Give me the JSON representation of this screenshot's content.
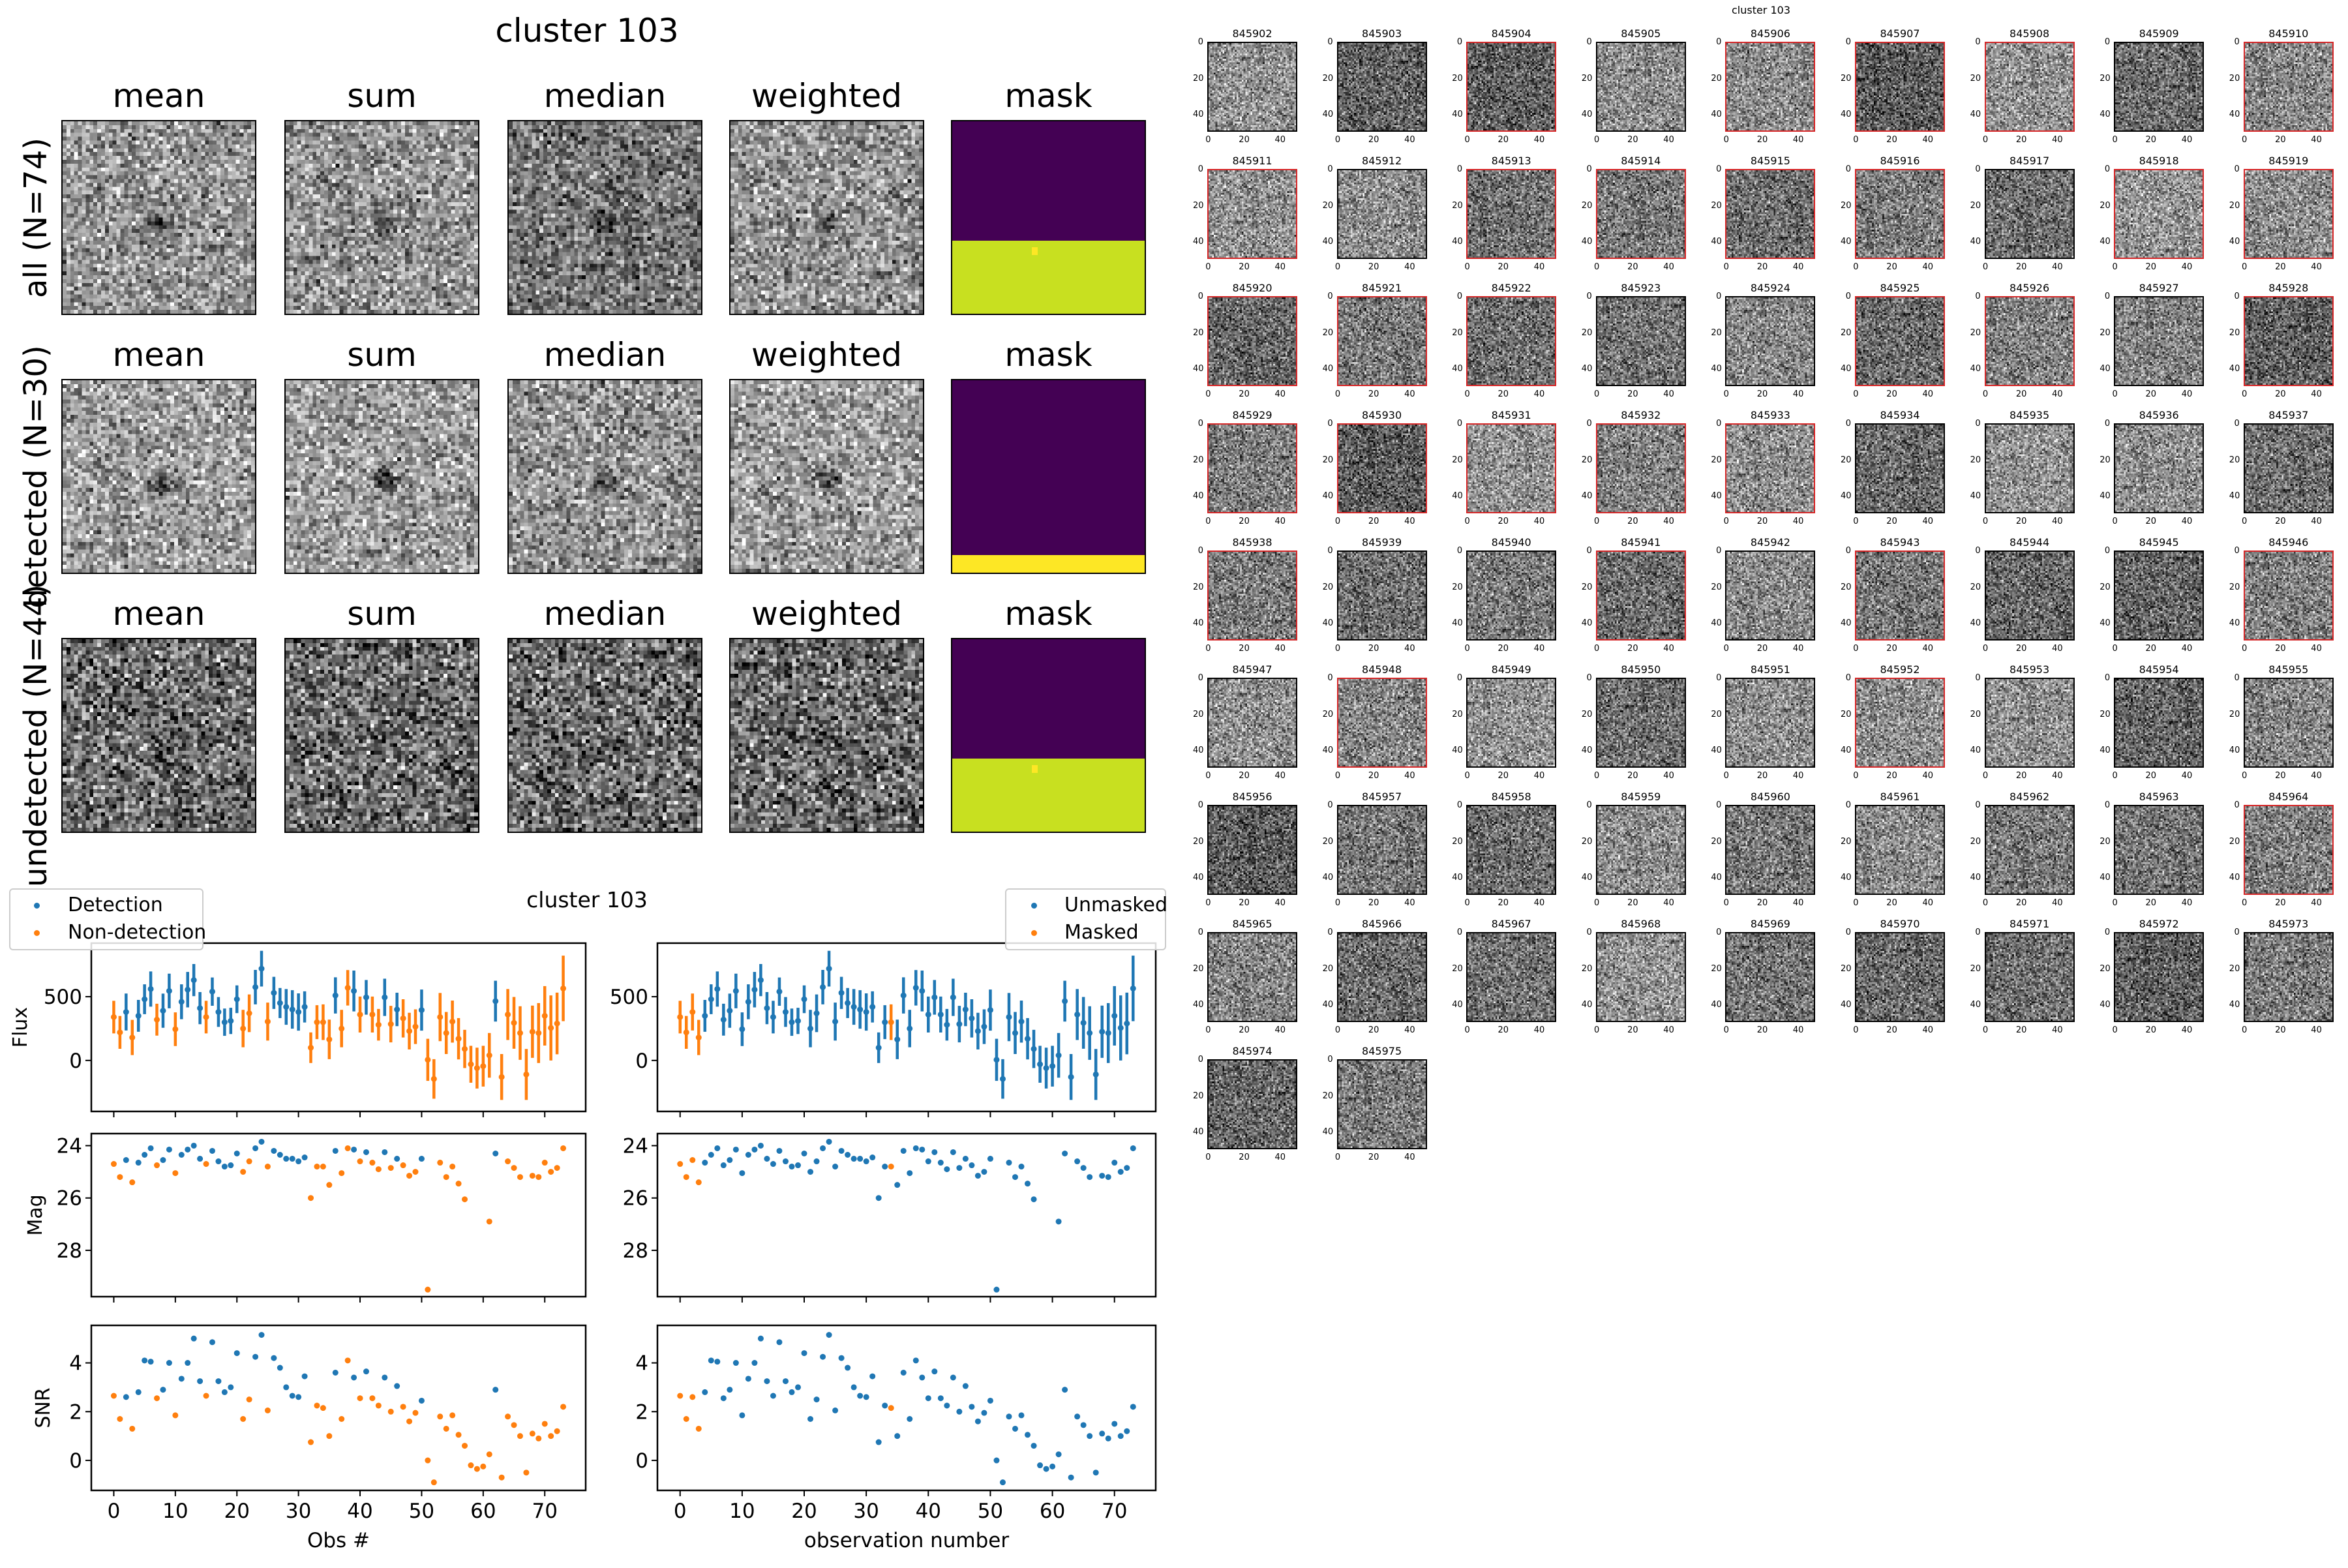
{
  "title": "cluster 103",
  "stack": {
    "columns": [
      "mean",
      "sum",
      "median",
      "weighted",
      "mask"
    ],
    "rows": [
      {
        "label": "all (N=74)",
        "mask_lower_fraction": 0.38,
        "mask_lower_color": "#c8e020",
        "mask_dot": true
      },
      {
        "label": "detected (N=30)",
        "mask_lower_fraction": 0.09,
        "mask_lower_color": "#fde725",
        "mask_dot": false
      },
      {
        "label": "undetected (N=44)",
        "mask_lower_fraction": 0.38,
        "mask_lower_color": "#c8e020",
        "mask_dot": true
      }
    ],
    "colormap": "gray",
    "mask_colormap": "viridis",
    "mask_upper_color": "#440154"
  },
  "colors": {
    "blue": "#1f77b4",
    "orange": "#ff7f0e",
    "detected_border": "#d62728"
  },
  "cutouts": {
    "title": "cluster 103",
    "ticks": [
      "0",
      "20",
      "40"
    ],
    "ids": [
      "845902",
      "845903",
      "845904",
      "845905",
      "845906",
      "845907",
      "845908",
      "845909",
      "845910",
      "845911",
      "845912",
      "845913",
      "845914",
      "845915",
      "845916",
      "845917",
      "845918",
      "845919",
      "845920",
      "845921",
      "845922",
      "845923",
      "845924",
      "845925",
      "845926",
      "845927",
      "845928",
      "845929",
      "845930",
      "845931",
      "845932",
      "845933",
      "845934",
      "845935",
      "845936",
      "845937",
      "845938",
      "845939",
      "845940",
      "845941",
      "845942",
      "845943",
      "845944",
      "845945",
      "845946",
      "845947",
      "845948",
      "845949",
      "845950",
      "845951",
      "845952",
      "845953",
      "845954",
      "845955",
      "845956",
      "845957",
      "845958",
      "845959",
      "845960",
      "845961",
      "845962",
      "845963",
      "845964",
      "845965",
      "845966",
      "845967",
      "845968",
      "845969",
      "845970",
      "845971",
      "845972",
      "845973",
      "845974",
      "845975"
    ]
  },
  "chart_data": {
    "type": "scatter",
    "title": "cluster 103",
    "x": [
      0,
      1,
      2,
      3,
      4,
      5,
      6,
      7,
      8,
      9,
      10,
      11,
      12,
      13,
      14,
      15,
      16,
      17,
      18,
      19,
      20,
      21,
      22,
      23,
      24,
      25,
      26,
      27,
      28,
      29,
      30,
      31,
      32,
      33,
      34,
      35,
      36,
      37,
      38,
      39,
      40,
      41,
      42,
      43,
      44,
      45,
      46,
      47,
      48,
      49,
      50,
      51,
      52,
      53,
      54,
      55,
      56,
      57,
      58,
      59,
      60,
      61,
      62,
      63,
      64,
      65,
      66,
      67,
      68,
      69,
      70,
      71,
      72,
      73
    ],
    "xlim": [
      -3.65,
      76.65
    ],
    "xticks": [
      "0",
      "10",
      "20",
      "30",
      "40",
      "50",
      "60",
      "70"
    ],
    "flux": [
      340,
      220,
      380,
      180,
      350,
      480,
      560,
      320,
      390,
      545,
      245,
      460,
      555,
      630,
      410,
      340,
      540,
      380,
      300,
      310,
      480,
      250,
      370,
      575,
      720,
      305,
      530,
      450,
      420,
      400,
      380,
      420,
      100,
      300,
      300,
      165,
      510,
      250,
      570,
      545,
      360,
      495,
      360,
      280,
      495,
      285,
      400,
      330,
      230,
      265,
      395,
      5,
      -145,
      340,
      215,
      305,
      170,
      90,
      -30,
      -60,
      -45,
      40,
      465,
      -130,
      360,
      295,
      215,
      -110,
      225,
      215,
      350,
      255,
      290,
      565
    ],
    "flux_err": [
      128,
      129,
      145,
      138,
      125,
      117,
      138,
      125,
      134,
      136,
      132,
      137,
      139,
      126,
      126,
      128,
      111,
      117,
      107,
      103,
      109,
      147,
      148,
      135,
      140,
      149,
      126,
      118,
      140,
      151,
      146,
      122,
      120,
      133,
      140,
      155,
      142,
      147,
      139,
      160,
      141,
      136,
      141,
      124,
      146,
      143,
      131,
      150,
      144,
      136,
      161,
      165,
      155,
      189,
      165,
      165,
      162,
      150,
      145,
      160,
      160,
      175,
      160,
      180,
      200,
      203,
      210,
      200,
      205,
      235,
      233,
      255,
      242,
      257
    ],
    "mag": [
      24.7,
      25.2,
      24.55,
      25.4,
      24.65,
      24.35,
      24.1,
      24.75,
      24.55,
      24.15,
      25.05,
      24.35,
      24.15,
      24.0,
      24.5,
      24.7,
      24.2,
      24.6,
      24.8,
      24.75,
      24.3,
      25.0,
      24.6,
      24.1,
      23.85,
      24.8,
      24.2,
      24.35,
      24.5,
      24.5,
      24.6,
      24.45,
      26.0,
      24.8,
      24.8,
      25.5,
      24.2,
      25.05,
      24.1,
      24.15,
      24.6,
      24.25,
      24.65,
      24.9,
      24.25,
      24.85,
      24.5,
      24.75,
      25.15,
      25.0,
      24.5,
      29.5,
      null,
      24.65,
      25.2,
      24.8,
      25.45,
      26.05,
      null,
      null,
      null,
      26.9,
      24.3,
      null,
      24.6,
      24.85,
      25.2,
      null,
      25.15,
      25.2,
      24.65,
      25.0,
      24.85,
      24.1
    ],
    "snr": [
      2.65,
      1.7,
      2.6,
      1.3,
      2.8,
      4.1,
      4.05,
      2.55,
      2.9,
      4.0,
      1.85,
      3.35,
      4.0,
      5.0,
      3.25,
      2.65,
      4.85,
      3.25,
      2.8,
      3.0,
      4.4,
      1.7,
      2.5,
      4.25,
      5.15,
      2.05,
      4.2,
      3.8,
      3.0,
      2.65,
      2.6,
      3.45,
      0.75,
      2.25,
      2.15,
      1.0,
      3.6,
      1.7,
      4.1,
      3.4,
      2.55,
      3.65,
      2.55,
      2.25,
      3.4,
      2.0,
      3.05,
      2.2,
      1.6,
      1.95,
      2.45,
      0.0,
      -0.9,
      1.8,
      1.3,
      1.85,
      1.05,
      0.6,
      -0.2,
      -0.35,
      -0.25,
      0.25,
      2.9,
      -0.7,
      1.8,
      1.45,
      1.0,
      -0.5,
      1.1,
      0.9,
      1.5,
      1.0,
      1.2,
      2.2
    ],
    "detected": [
      0,
      0,
      1,
      0,
      1,
      1,
      1,
      0,
      1,
      1,
      0,
      1,
      1,
      1,
      1,
      0,
      1,
      1,
      1,
      1,
      1,
      0,
      0,
      1,
      1,
      0,
      1,
      1,
      1,
      1,
      1,
      1,
      0,
      0,
      0,
      0,
      1,
      0,
      0,
      1,
      0,
      1,
      0,
      0,
      1,
      0,
      1,
      0,
      0,
      0,
      1,
      0,
      0,
      0,
      0,
      0,
      0,
      0,
      0,
      0,
      0,
      0,
      1,
      0,
      0,
      0,
      0,
      0,
      0,
      0,
      0,
      0,
      0,
      0
    ],
    "masked": [
      1,
      1,
      1,
      1,
      0,
      0,
      0,
      0,
      0,
      0,
      0,
      0,
      0,
      0,
      0,
      0,
      0,
      0,
      0,
      0,
      0,
      0,
      0,
      0,
      0,
      0,
      0,
      0,
      0,
      0,
      0,
      0,
      0,
      0,
      1,
      0,
      0,
      0,
      0,
      0,
      0,
      0,
      0,
      0,
      0,
      0,
      0,
      0,
      0,
      0,
      0,
      0,
      0,
      0,
      0,
      0,
      0,
      0,
      0,
      0,
      0,
      0,
      0,
      0,
      0,
      0,
      0,
      0,
      0,
      0,
      0,
      0,
      0,
      0
    ],
    "panels": [
      {
        "ylabel": "Flux",
        "key": "flux",
        "ylim": [
          -400,
          920
        ],
        "yticks": [
          "0",
          "500"
        ],
        "inverted": false
      },
      {
        "ylabel": "Mag",
        "key": "mag",
        "ylim": [
          23.54,
          29.77
        ],
        "yticks": [
          "24",
          "26",
          "28"
        ],
        "inverted": true
      },
      {
        "ylabel": "SNR",
        "key": "snr",
        "ylim": [
          -1.23,
          5.54
        ],
        "yticks": [
          "0",
          "2",
          "4"
        ],
        "inverted": false
      }
    ],
    "left": {
      "xlabel": "Obs #",
      "legend": [
        "Detection",
        "Non-detection"
      ],
      "legend_position": "upper-left"
    },
    "right": {
      "xlabel": "observation number",
      "legend": [
        "Unmasked",
        "Masked"
      ],
      "legend_position": "upper-right"
    }
  }
}
